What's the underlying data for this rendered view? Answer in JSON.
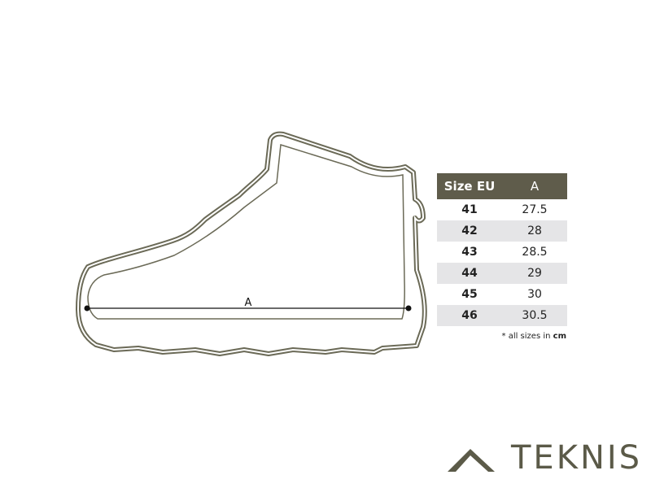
{
  "diagram": {
    "measurement_label": "A",
    "outline_color": "#6b6a57"
  },
  "table": {
    "headers": [
      "Size EU",
      "A"
    ],
    "header_bg": "#5f5c4b",
    "rows": [
      {
        "size": "41",
        "a": "27.5"
      },
      {
        "size": "42",
        "a": "28"
      },
      {
        "size": "43",
        "a": "28.5"
      },
      {
        "size": "44",
        "a": "29"
      },
      {
        "size": "45",
        "a": "30"
      },
      {
        "size": "46",
        "a": "30.5"
      }
    ],
    "note_prefix": "* all sizes in",
    "note_unit": "cm"
  },
  "logo": {
    "text": "TEKNIS",
    "icon": "roof-chevron-icon"
  }
}
